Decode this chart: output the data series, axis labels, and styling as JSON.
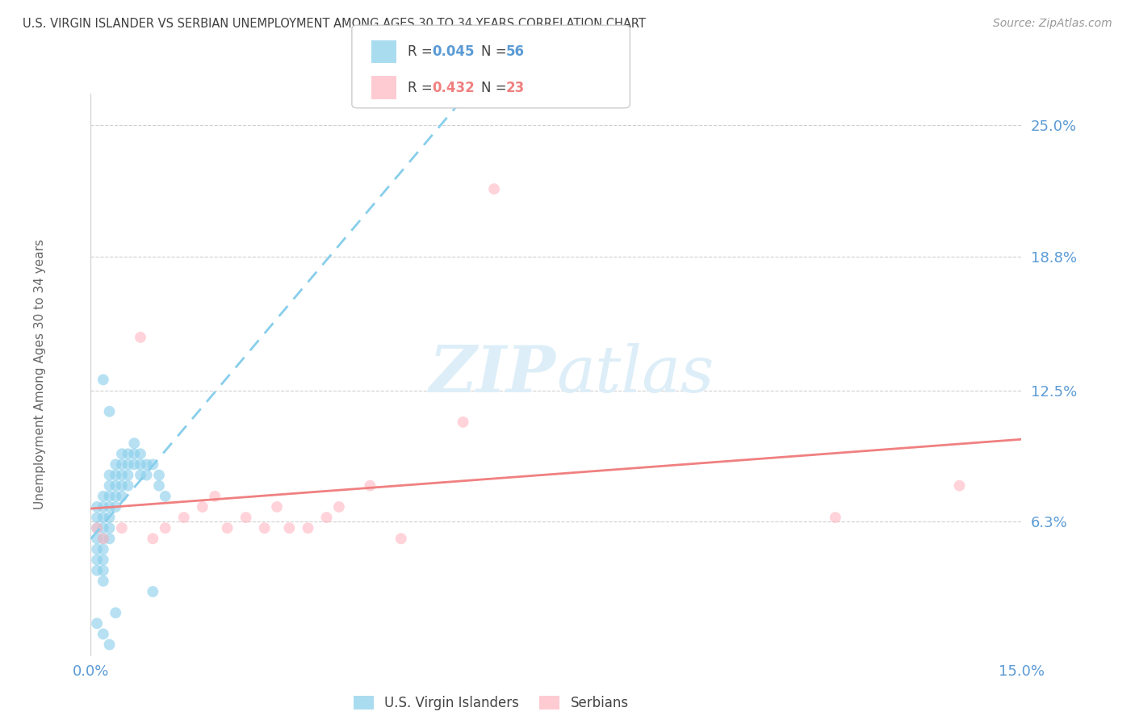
{
  "title": "U.S. VIRGIN ISLANDER VS SERBIAN UNEMPLOYMENT AMONG AGES 30 TO 34 YEARS CORRELATION CHART",
  "source": "Source: ZipAtlas.com",
  "ylabel": "Unemployment Among Ages 30 to 34 years",
  "xlim": [
    0.0,
    0.15
  ],
  "ylim": [
    0.0,
    0.265
  ],
  "ytick_positions": [
    0.063,
    0.125,
    0.188,
    0.25
  ],
  "ytick_labels": [
    "6.3%",
    "12.5%",
    "18.8%",
    "25.0%"
  ],
  "vi_scatter_x": [
    0.001,
    0.001,
    0.001,
    0.001,
    0.001,
    0.001,
    0.001,
    0.002,
    0.002,
    0.002,
    0.002,
    0.002,
    0.002,
    0.002,
    0.002,
    0.002,
    0.003,
    0.003,
    0.003,
    0.003,
    0.003,
    0.003,
    0.003,
    0.004,
    0.004,
    0.004,
    0.004,
    0.004,
    0.005,
    0.005,
    0.005,
    0.005,
    0.005,
    0.006,
    0.006,
    0.006,
    0.006,
    0.007,
    0.007,
    0.007,
    0.008,
    0.008,
    0.008,
    0.009,
    0.009,
    0.01,
    0.01,
    0.011,
    0.011,
    0.012,
    0.002,
    0.003,
    0.004,
    0.001,
    0.002,
    0.003
  ],
  "vi_scatter_y": [
    0.065,
    0.07,
    0.06,
    0.055,
    0.05,
    0.045,
    0.04,
    0.075,
    0.07,
    0.065,
    0.06,
    0.055,
    0.05,
    0.045,
    0.04,
    0.035,
    0.085,
    0.08,
    0.075,
    0.07,
    0.065,
    0.06,
    0.055,
    0.09,
    0.085,
    0.08,
    0.075,
    0.07,
    0.095,
    0.09,
    0.085,
    0.08,
    0.075,
    0.095,
    0.09,
    0.085,
    0.08,
    0.1,
    0.095,
    0.09,
    0.095,
    0.09,
    0.085,
    0.09,
    0.085,
    0.09,
    0.03,
    0.085,
    0.08,
    0.075,
    0.13,
    0.115,
    0.02,
    0.015,
    0.01,
    0.005
  ],
  "serb_scatter_x": [
    0.001,
    0.002,
    0.005,
    0.008,
    0.01,
    0.012,
    0.015,
    0.018,
    0.02,
    0.022,
    0.025,
    0.028,
    0.03,
    0.032,
    0.035,
    0.038,
    0.04,
    0.045,
    0.05,
    0.06,
    0.065,
    0.12,
    0.14
  ],
  "serb_scatter_y": [
    0.06,
    0.055,
    0.06,
    0.15,
    0.055,
    0.06,
    0.065,
    0.07,
    0.075,
    0.06,
    0.065,
    0.06,
    0.07,
    0.06,
    0.06,
    0.065,
    0.07,
    0.08,
    0.055,
    0.11,
    0.22,
    0.065,
    0.08
  ],
  "vi_line_color": "#87ceeb",
  "vi_line_style": "--",
  "serb_line_color": "#f08080",
  "serb_line_style": "-",
  "vi_R": "0.045",
  "vi_N": "56",
  "serb_R": "0.432",
  "serb_N": "23",
  "vi_scatter_color": "#87ceeb",
  "serb_scatter_color": "#ffb6c1",
  "scatter_alpha": 0.6,
  "scatter_size": 100,
  "background_color": "#ffffff",
  "grid_color": "#d0d0d0",
  "axis_label_color": "#5b9bd5",
  "title_color": "#404040",
  "watermark_color": "#ddeef8",
  "watermark_fontsize": 58,
  "legend_box_color": "#ffffff",
  "legend_border_color": "#cccccc",
  "vi_legend_color": "#87ceeb",
  "serb_legend_color": "#ffb6c1",
  "R_vi_color": "#5b9bd5",
  "N_vi_color": "#5b9bd5",
  "R_serb_color": "#f08080",
  "N_serb_color": "#f08080"
}
